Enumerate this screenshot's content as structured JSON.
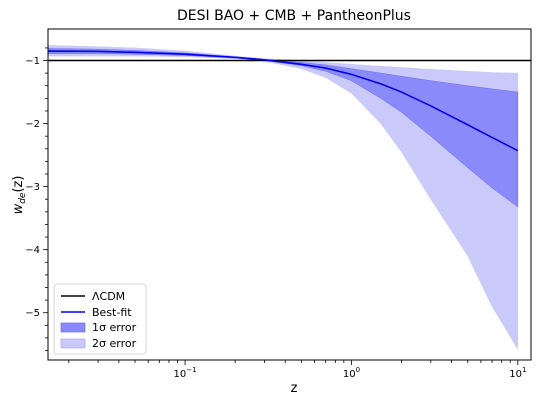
{
  "chart_data": {
    "type": "line",
    "title": "DESI BAO + CMB + PantheonPlus",
    "xlabel": "z",
    "ylabel": "w_de(z)",
    "ylabel_main": "w",
    "ylabel_sub": "de",
    "ylabel_tail": "(z)",
    "x_scale": "log",
    "xlim": [
      0.015,
      12
    ],
    "ylim": [
      -5.75,
      -0.5
    ],
    "xticks": [
      {
        "value": 0.1,
        "base": "10",
        "exp": "−1"
      },
      {
        "value": 1,
        "base": "10",
        "exp": "0"
      },
      {
        "value": 10,
        "base": "10",
        "exp": "1"
      }
    ],
    "yticks": [
      {
        "value": -1,
        "label": "−1"
      },
      {
        "value": -2,
        "label": "−2"
      },
      {
        "value": -3,
        "label": "−3"
      },
      {
        "value": -4,
        "label": "−4"
      },
      {
        "value": -5,
        "label": "−5"
      }
    ],
    "grid": false,
    "legend_position": "lower-left",
    "series": [
      {
        "name": "ΛCDM",
        "kind": "hline",
        "y": -1,
        "color": "#000000"
      },
      {
        "name": "Best-fit",
        "kind": "line",
        "color": "#0000ee",
        "x": [
          0.015,
          0.03,
          0.05,
          0.1,
          0.2,
          0.3,
          0.5,
          0.7,
          1,
          1.5,
          2,
          3,
          5,
          7,
          10
        ],
        "y": [
          -0.85,
          -0.855,
          -0.87,
          -0.9,
          -0.95,
          -0.99,
          -1.06,
          -1.12,
          -1.22,
          -1.37,
          -1.5,
          -1.72,
          -2.02,
          -2.22,
          -2.43
        ]
      },
      {
        "name": "1σ error",
        "kind": "band",
        "color": "#8a8afa",
        "x": [
          0.015,
          0.03,
          0.05,
          0.1,
          0.2,
          0.3,
          0.5,
          0.7,
          1,
          1.5,
          2,
          3,
          5,
          7,
          10
        ],
        "upper": [
          -0.81,
          -0.82,
          -0.84,
          -0.88,
          -0.94,
          -0.98,
          -1.03,
          -1.07,
          -1.13,
          -1.2,
          -1.25,
          -1.32,
          -1.4,
          -1.45,
          -1.5
        ],
        "lower": [
          -0.89,
          -0.89,
          -0.9,
          -0.92,
          -0.96,
          -1.0,
          -1.08,
          -1.17,
          -1.32,
          -1.6,
          -1.82,
          -2.2,
          -2.7,
          -3.02,
          -3.32
        ]
      },
      {
        "name": "2σ error",
        "kind": "band",
        "color": "#c9c9fa",
        "x": [
          0.015,
          0.03,
          0.05,
          0.1,
          0.2,
          0.3,
          0.5,
          0.7,
          1,
          1.5,
          2,
          3,
          5,
          7,
          10
        ],
        "upper": [
          -0.76,
          -0.78,
          -0.8,
          -0.85,
          -0.93,
          -0.97,
          -1.0,
          -1.03,
          -1.06,
          -1.09,
          -1.11,
          -1.14,
          -1.17,
          -1.19,
          -1.2
        ],
        "lower": [
          -0.93,
          -0.93,
          -0.93,
          -0.94,
          -0.97,
          -1.01,
          -1.13,
          -1.27,
          -1.52,
          -2.0,
          -2.45,
          -3.2,
          -4.1,
          -4.9,
          -5.58
        ]
      }
    ]
  }
}
